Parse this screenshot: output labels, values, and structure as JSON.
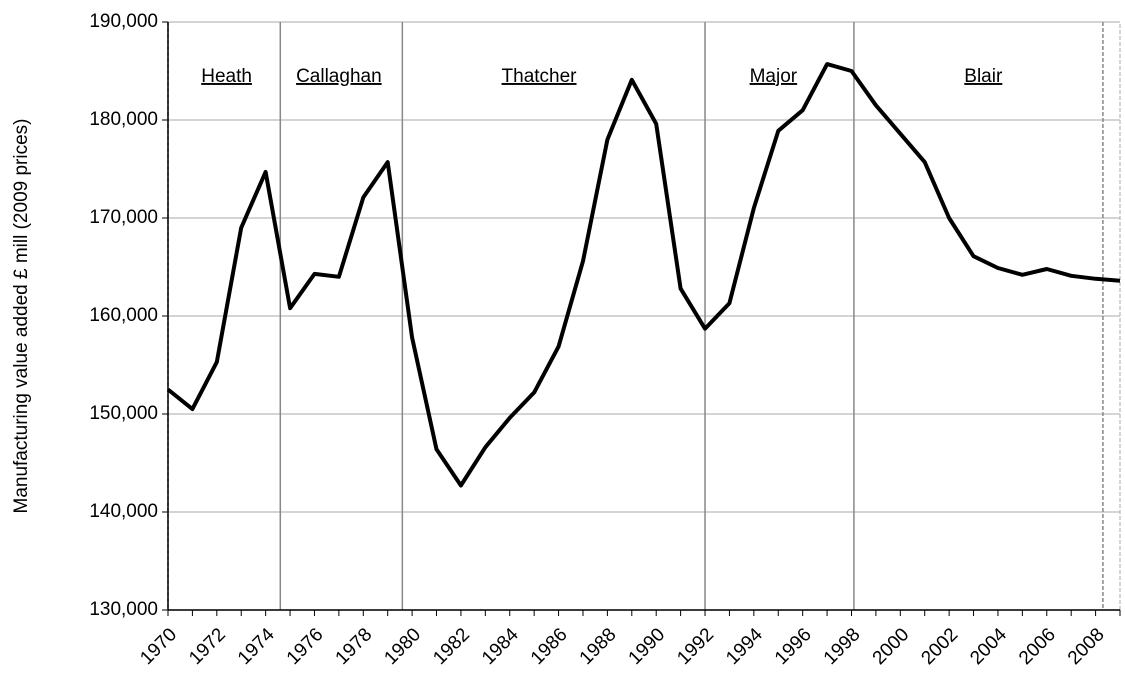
{
  "chart_data": {
    "type": "line",
    "y_axis_label": "Manufacturing value added £ mill (2009 prices)",
    "x": [
      1970,
      1971,
      1972,
      1973,
      1974,
      1975,
      1976,
      1977,
      1978,
      1979,
      1980,
      1981,
      1982,
      1983,
      1984,
      1985,
      1986,
      1987,
      1988,
      1989,
      1990,
      1991,
      1992,
      1993,
      1994,
      1995,
      1996,
      1997,
      1998,
      1999,
      2000,
      2001,
      2002,
      2003,
      2004,
      2005,
      2006,
      2007,
      2008,
      2009
    ],
    "series": [
      {
        "name": "Manufacturing value added",
        "color": "#000000",
        "values": [
          152500,
          150500,
          155300,
          169000,
          174700,
          160800,
          164300,
          164000,
          172100,
          175700,
          157800,
          146400,
          142700,
          146600,
          149600,
          152200,
          156900,
          165600,
          178000,
          184100,
          179600,
          162800,
          158700,
          161300,
          171000,
          178900,
          181000,
          185700,
          185000,
          181500,
          178600,
          175700,
          170000,
          166100,
          164900,
          164200,
          164800,
          164100,
          163800,
          163600
        ]
      }
    ],
    "xlim": [
      1970,
      2009
    ],
    "xticks": [
      1970,
      1972,
      1974,
      1976,
      1978,
      1980,
      1982,
      1984,
      1986,
      1988,
      1990,
      1992,
      1994,
      1996,
      1998,
      2000,
      2002,
      2004,
      2006,
      2008
    ],
    "ylim": [
      130000,
      190000
    ],
    "yticks": [
      {
        "value": 130000,
        "label": "130,000"
      },
      {
        "value": 140000,
        "label": "140,000"
      },
      {
        "value": 150000,
        "label": "150,000"
      },
      {
        "value": 160000,
        "label": "160,000"
      },
      {
        "value": 170000,
        "label": "170,000"
      },
      {
        "value": 180000,
        "label": "180,000"
      },
      {
        "value": 190000,
        "label": "190,000"
      }
    ],
    "grid": true,
    "period_lines": [
      1970,
      1974.6,
      1979.6,
      1992,
      1998.1,
      2008.3
    ],
    "annotations": [
      {
        "text": "Heath",
        "x": 1972.4
      },
      {
        "text": "Callaghan",
        "x": 1977.0
      },
      {
        "text": "Thatcher",
        "x": 1985.2
      },
      {
        "text": "Major",
        "x": 1994.8
      },
      {
        "text": "Blair",
        "x": 2003.4
      }
    ]
  }
}
